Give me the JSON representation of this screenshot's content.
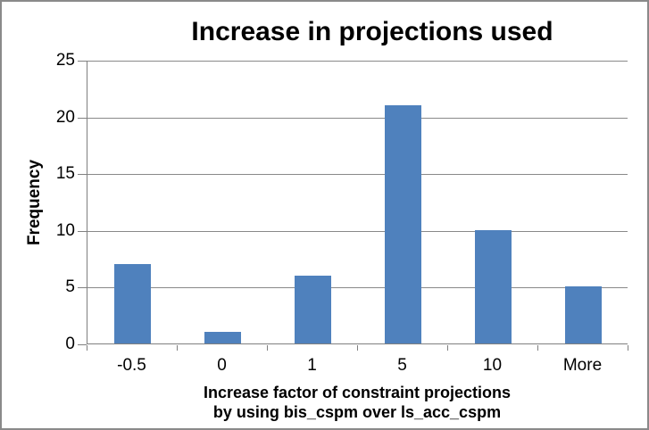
{
  "chart_data": {
    "type": "bar",
    "title": "Increase in projections used",
    "categories": [
      "-0.5",
      "0",
      "1",
      "5",
      "10",
      "More"
    ],
    "values": [
      7,
      1,
      6,
      21,
      10,
      5
    ],
    "xlabel": "Increase factor of constraint projections by using bis_cspm over ls_acc_cspm",
    "xlabel_lines": [
      "Increase factor of constraint projections",
      "by using bis_cspm over ls_acc_cspm"
    ],
    "ylabel": "Frequency",
    "ylim": [
      0,
      25
    ],
    "yticks": [
      0,
      5,
      10,
      15,
      20,
      25
    ],
    "grid": "horizontal",
    "legend": "none",
    "colors": {
      "bar": "#4F81BD",
      "gridline": "#898989",
      "axis": "#808080",
      "frame": "#8A8A8A",
      "background": "#FFFFFF",
      "text": "#000000"
    }
  }
}
